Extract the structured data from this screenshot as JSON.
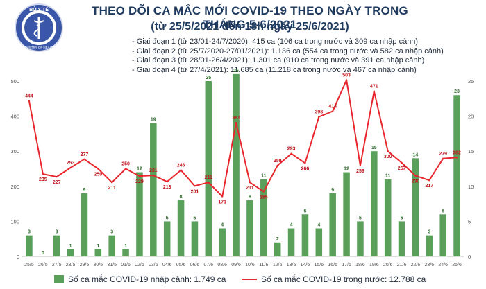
{
  "header": {
    "title": "THEO DÕI CA MẮC MỚI COVID-19 THEO NGÀY TRONG THÁNG 5-6/2021",
    "subtitle": "(từ 25/5/2021 đến 18h ngày 25/6/2021)",
    "logo_text": "BỘ Y TẾ",
    "logo_subtext": "MINISTRY OF HEALTH"
  },
  "stages": [
    "- Giai đoạn 1 (từ 23/01-24/7/2020): 415 ca (106 ca trong nước và 309 ca nhập cảnh)",
    "- Giai đoạn 2 (từ 25/7/2020-27/01/2021): 1.136 ca (554 ca trong nước và 582 ca nhập cảnh)",
    "- Giai đoạn 3 (từ 28/01-26/4/2021): 1.301 ca (910 ca trong nước và 391 ca nhập cảnh)",
    "- Giai đoạn 4 (từ 27/4/2021): 11.685 ca (11.218 ca trong nước và 467 ca nhập cảnh)"
  ],
  "legend": {
    "bars": "Số ca mắc COVID-19 nhập cảnh: 1.749 ca",
    "line": "Số ca mắc COVID-19 trong nước: 12.788 ca"
  },
  "colors": {
    "bar": "#5aa05a",
    "line": "#e8262d",
    "text": "#1f3a5f",
    "axis": "#555555"
  },
  "chart_data": {
    "type": "bar",
    "categories": [
      "25/5",
      "26/5",
      "27/5",
      "28/5",
      "29/5",
      "30/5",
      "31/5",
      "01/6",
      "02/6",
      "03/6",
      "04/6",
      "05/6",
      "06/6",
      "07/6",
      "08/6",
      "09/6",
      "10/6",
      "11/6",
      "12/6",
      "13/6",
      "14/6",
      "15/6",
      "16/6",
      "17/6",
      "18/6",
      "19/6",
      "20/6",
      "21/6",
      "22/6",
      "23/6",
      "24/6",
      "25/6"
    ],
    "series": [
      {
        "name": "Số ca mắc COVID-19 nhập cảnh: 1.749 ca",
        "kind": "bar",
        "axis": "right",
        "values": [
          3,
          0,
          3,
          1,
          9,
          1,
          3,
          1,
          12,
          19,
          5,
          8,
          5,
          25,
          4,
          26,
          8,
          11,
          2,
          4,
          6,
          4,
          9,
          12,
          5,
          15,
          11,
          5,
          14,
          3,
          6,
          23
        ]
      },
      {
        "name": "Số ca mắc COVID-19 trong nước: 12.788 ca",
        "kind": "line",
        "axis": "left",
        "values": [
          444,
          235,
          227,
          253,
          277,
          250,
          211,
          250,
          229,
          231,
          213,
          246,
          201,
          211,
          171,
          381,
          211,
          185,
          259,
          293,
          266,
          398,
          414,
          503,
          259,
          471,
          300,
          267,
          230,
          217,
          279,
          282
        ]
      }
    ],
    "left_axis": {
      "ylim": [
        0,
        500
      ],
      "ticks": [
        0,
        100,
        200,
        300,
        400,
        500
      ]
    },
    "right_axis": {
      "ylim": [
        0,
        25
      ],
      "ticks": [
        0,
        5,
        10,
        15,
        20,
        25
      ]
    },
    "grid": false
  }
}
